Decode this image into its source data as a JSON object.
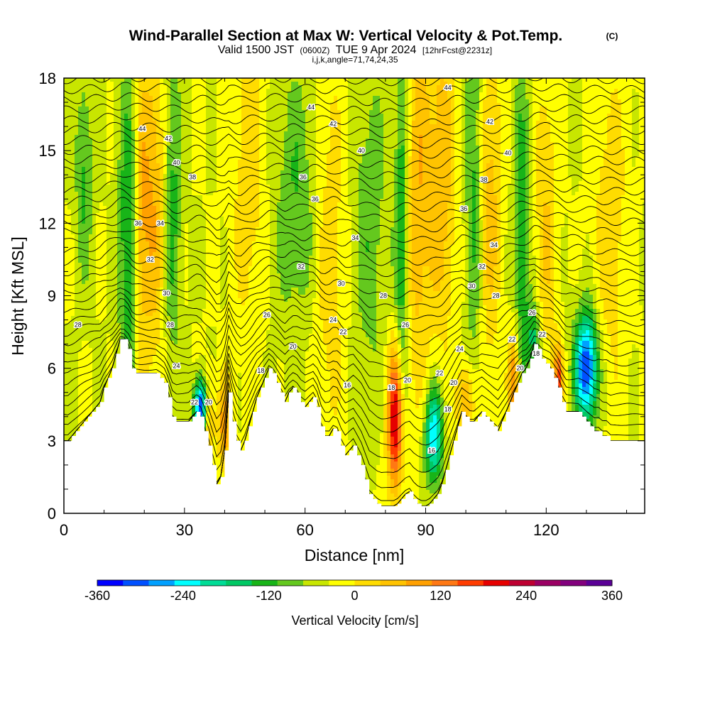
{
  "title": {
    "main": "Wind-Parallel Section at Max W: Vertical Velocity & Pot.Temp.",
    "copyright": "(C)",
    "valid_prefix": "Valid 1500 JST",
    "valid_utc": "(0600Z)",
    "valid_date": "TUE 9 Apr 2024",
    "forecast": "[12hrFcst@2231z]",
    "indices": "i,j,k,angle=71,74,24,35"
  },
  "chart_data": {
    "type": "heatmap",
    "xlabel": "Distance [nm]",
    "ylabel": "Height [Kft MSL]",
    "xlim": [
      0,
      144.5
    ],
    "ylim": [
      0,
      18
    ],
    "x_ticks": [
      0,
      30,
      60,
      90,
      120
    ],
    "y_ticks": [
      0,
      3,
      6,
      9,
      12,
      15,
      18
    ],
    "x_tick_labels": [
      "0",
      "30",
      "60",
      "90",
      "120"
    ],
    "y_tick_labels": [
      "0",
      "3",
      "6",
      "9",
      "12",
      "15",
      "18"
    ],
    "colorbar": {
      "title": "Vertical Velocity [cm/s]",
      "min": -360,
      "max": 360,
      "step": 40,
      "tick_values": [
        -360,
        -240,
        -120,
        0,
        120,
        240,
        360
      ],
      "tick_labels": [
        "-360",
        "-240",
        "-120",
        "0",
        "120",
        "240",
        "360"
      ],
      "colors": [
        "#0000ff",
        "#0050ff",
        "#00a0ff",
        "#00ffff",
        "#00dc96",
        "#00c864",
        "#18b418",
        "#64c81e",
        "#c8e600",
        "#ffff00",
        "#ffdc00",
        "#ffc300",
        "#ffa000",
        "#ff7814",
        "#ff3c00",
        "#e60000",
        "#be0032",
        "#9b0064",
        "#82007d",
        "#5a0096"
      ]
    },
    "terrain": [
      [
        0,
        3.0
      ],
      [
        1,
        3.0
      ],
      [
        2,
        3.2
      ],
      [
        3,
        3.4
      ],
      [
        4,
        3.6
      ],
      [
        5,
        3.8
      ],
      [
        6,
        4.0
      ],
      [
        7,
        4.2
      ],
      [
        8,
        4.4
      ],
      [
        9,
        4.6
      ],
      [
        10,
        5.2
      ],
      [
        11,
        5.6
      ],
      [
        12,
        6.0
      ],
      [
        13,
        6.6
      ],
      [
        14,
        7.2
      ],
      [
        15,
        7.2
      ],
      [
        16,
        6.8
      ],
      [
        17,
        6.0
      ],
      [
        18,
        5.8
      ],
      [
        19,
        5.8
      ],
      [
        20,
        5.8
      ],
      [
        21,
        5.8
      ],
      [
        22,
        5.8
      ],
      [
        23,
        5.8
      ],
      [
        24,
        5.6
      ],
      [
        25,
        5.4
      ],
      [
        26,
        4.8
      ],
      [
        27,
        4.0
      ],
      [
        28,
        3.8
      ],
      [
        29,
        3.8
      ],
      [
        30,
        3.8
      ],
      [
        31,
        3.8
      ],
      [
        32,
        4.0
      ],
      [
        33,
        4.2
      ],
      [
        34,
        4.0
      ],
      [
        35,
        3.4
      ],
      [
        36,
        2.8
      ],
      [
        37,
        2.0
      ],
      [
        38,
        1.2
      ],
      [
        39,
        1.5
      ],
      [
        40,
        2.6
      ],
      [
        41,
        5.0
      ],
      [
        42,
        3.8
      ],
      [
        43,
        3.0
      ],
      [
        44,
        2.6
      ],
      [
        45,
        3.0
      ],
      [
        46,
        3.6
      ],
      [
        47,
        4.2
      ],
      [
        48,
        4.8
      ],
      [
        49,
        5.2
      ],
      [
        50,
        5.6
      ],
      [
        51,
        6.0
      ],
      [
        52,
        5.8
      ],
      [
        53,
        5.4
      ],
      [
        54,
        5.0
      ],
      [
        55,
        4.6
      ],
      [
        56,
        5.0
      ],
      [
        57,
        5.2
      ],
      [
        58,
        5.0
      ],
      [
        59,
        4.6
      ],
      [
        60,
        4.4
      ],
      [
        61,
        4.6
      ],
      [
        62,
        4.8
      ],
      [
        63,
        4.4
      ],
      [
        64,
        3.6
      ],
      [
        65,
        3.2
      ],
      [
        66,
        3.2
      ],
      [
        67,
        3.5
      ],
      [
        68,
        3.4
      ],
      [
        69,
        2.8
      ],
      [
        70,
        2.4
      ],
      [
        71,
        2.6
      ],
      [
        72,
        2.8
      ],
      [
        73,
        2.4
      ],
      [
        74,
        2.0
      ],
      [
        75,
        1.4
      ],
      [
        76,
        0.8
      ],
      [
        77,
        0.6
      ],
      [
        78,
        0.4
      ],
      [
        79,
        0.3
      ],
      [
        80,
        0.3
      ],
      [
        81,
        0.3
      ],
      [
        82,
        0.3
      ],
      [
        83,
        0.4
      ],
      [
        84,
        0.6
      ],
      [
        85,
        0.8
      ],
      [
        86,
        0.9
      ],
      [
        87,
        0.6
      ],
      [
        88,
        0.4
      ],
      [
        89,
        0.3
      ],
      [
        90,
        0.3
      ],
      [
        91,
        0.4
      ],
      [
        92,
        0.6
      ],
      [
        93,
        0.8
      ],
      [
        94,
        1.2
      ],
      [
        95,
        1.8
      ],
      [
        96,
        2.4
      ],
      [
        97,
        3.0
      ],
      [
        98,
        3.6
      ],
      [
        99,
        4.2
      ],
      [
        100,
        4.0
      ],
      [
        101,
        3.8
      ],
      [
        102,
        3.8
      ],
      [
        103,
        4.0
      ],
      [
        104,
        4.2
      ],
      [
        105,
        4.0
      ],
      [
        106,
        3.8
      ],
      [
        107,
        3.6
      ],
      [
        108,
        3.4
      ],
      [
        109,
        3.8
      ],
      [
        110,
        4.2
      ],
      [
        111,
        4.6
      ],
      [
        112,
        5.0
      ],
      [
        113,
        5.4
      ],
      [
        114,
        5.8
      ],
      [
        115,
        6.0
      ],
      [
        116,
        6.4
      ],
      [
        117,
        7.0
      ],
      [
        118,
        6.8
      ],
      [
        119,
        6.4
      ],
      [
        120,
        6.2
      ],
      [
        121,
        6.0
      ],
      [
        122,
        5.6
      ],
      [
        123,
        5.2
      ],
      [
        124,
        4.6
      ],
      [
        125,
        4.2
      ],
      [
        126,
        4.2
      ],
      [
        127,
        4.2
      ],
      [
        128,
        4.2
      ],
      [
        129,
        4.0
      ],
      [
        130,
        3.8
      ],
      [
        131,
        3.6
      ],
      [
        132,
        3.4
      ],
      [
        133,
        3.4
      ],
      [
        134,
        3.2
      ],
      [
        135,
        3.2
      ],
      [
        136,
        3.0
      ],
      [
        137,
        3.0
      ],
      [
        138,
        3.0
      ],
      [
        139,
        3.0
      ],
      [
        140,
        3.0
      ],
      [
        141,
        3.0
      ],
      [
        142,
        3.0
      ],
      [
        143,
        3.0
      ],
      [
        144,
        3.0
      ],
      [
        144.5,
        3.0
      ]
    ],
    "velocity_features": [
      {
        "x": 5,
        "z": 14,
        "w": -90,
        "sx": 1.5,
        "sz": 3
      },
      {
        "x": 16,
        "z": 11.5,
        "w": -120,
        "sx": 1.8,
        "sz": 5
      },
      {
        "x": 19,
        "z": 12,
        "w": 90,
        "sx": 1.2,
        "sz": 4
      },
      {
        "x": 22,
        "z": 13,
        "w": 120,
        "sx": 2.2,
        "sz": 5
      },
      {
        "x": 27,
        "z": 13,
        "w": -100,
        "sx": 1.5,
        "sz": 5
      },
      {
        "x": 34,
        "z": 4.4,
        "w": -330,
        "sx": 1.2,
        "sz": 0.8
      },
      {
        "x": 36,
        "z": 4.0,
        "w": 120,
        "sx": 1.0,
        "sz": 1.2
      },
      {
        "x": 40,
        "z": 3.6,
        "w": 140,
        "sx": 1.2,
        "sz": 1.4
      },
      {
        "x": 46,
        "z": 14,
        "w": 70,
        "sx": 3,
        "sz": 5
      },
      {
        "x": 58,
        "z": 13,
        "w": -80,
        "sx": 4,
        "sz": 4
      },
      {
        "x": 66,
        "z": 11,
        "w": 70,
        "sx": 3,
        "sz": 6
      },
      {
        "x": 76,
        "z": 12,
        "w": -70,
        "sx": 3,
        "sz": 5
      },
      {
        "x": 82.5,
        "z": 3.8,
        "w": 300,
        "sx": 1.4,
        "sz": 2.2
      },
      {
        "x": 84,
        "z": 11,
        "w": -130,
        "sx": 1.2,
        "sz": 6
      },
      {
        "x": 88,
        "z": 13,
        "w": 110,
        "sx": 2.2,
        "sz": 6
      },
      {
        "x": 92,
        "z": 3.2,
        "w": -250,
        "sx": 1.6,
        "sz": 1.4
      },
      {
        "x": 94,
        "z": 14,
        "w": 110,
        "sx": 2.5,
        "sz": 5
      },
      {
        "x": 100,
        "z": 4.5,
        "w": 140,
        "sx": 1.5,
        "sz": 1.2
      },
      {
        "x": 102,
        "z": 14,
        "w": -100,
        "sx": 1.5,
        "sz": 6
      },
      {
        "x": 106,
        "z": 13,
        "w": 100,
        "sx": 2,
        "sz": 5
      },
      {
        "x": 112,
        "z": 5.5,
        "w": 180,
        "sx": 1.0,
        "sz": 1.4
      },
      {
        "x": 114,
        "z": 11,
        "w": -110,
        "sx": 1.4,
        "sz": 6
      },
      {
        "x": 117,
        "z": 7.2,
        "w": -140,
        "sx": 1.2,
        "sz": 1.0
      },
      {
        "x": 120,
        "z": 12,
        "w": 80,
        "sx": 2,
        "sz": 5
      },
      {
        "x": 123,
        "z": 5.6,
        "w": 200,
        "sx": 0.8,
        "sz": 1.0
      },
      {
        "x": 130,
        "z": 6.0,
        "w": -330,
        "sx": 2.0,
        "sz": 1.6
      },
      {
        "x": 136,
        "z": 12,
        "w": 70,
        "sx": 3,
        "sz": 5
      }
    ],
    "theta_contour_labels": [
      {
        "value": "44",
        "x": 19.5,
        "z": 15.9
      },
      {
        "value": "42",
        "x": 26.0,
        "z": 15.5
      },
      {
        "value": "40",
        "x": 28.0,
        "z": 14.5
      },
      {
        "value": "38",
        "x": 32.0,
        "z": 13.9
      },
      {
        "value": "36",
        "x": 18.5,
        "z": 12.0
      },
      {
        "value": "34",
        "x": 24.0,
        "z": 12.0
      },
      {
        "value": "32",
        "x": 21.5,
        "z": 10.5
      },
      {
        "value": "30",
        "x": 25.5,
        "z": 9.1
      },
      {
        "value": "28",
        "x": 3.5,
        "z": 7.8
      },
      {
        "value": "28",
        "x": 26.5,
        "z": 7.8
      },
      {
        "value": "26",
        "x": 50.5,
        "z": 8.2
      },
      {
        "value": "24",
        "x": 28.0,
        "z": 6.1
      },
      {
        "value": "22",
        "x": 32.5,
        "z": 4.6
      },
      {
        "value": "20",
        "x": 36.0,
        "z": 4.6
      },
      {
        "value": "18",
        "x": 49.0,
        "z": 5.9
      },
      {
        "value": "20",
        "x": 57.0,
        "z": 6.9
      },
      {
        "value": "24",
        "x": 67.0,
        "z": 8.0
      },
      {
        "value": "22",
        "x": 69.5,
        "z": 7.5
      },
      {
        "value": "16",
        "x": 70.5,
        "z": 5.3
      },
      {
        "value": "44",
        "x": 61.5,
        "z": 16.8
      },
      {
        "value": "42",
        "x": 67.0,
        "z": 16.1
      },
      {
        "value": "40",
        "x": 74.0,
        "z": 15.0
      },
      {
        "value": "36",
        "x": 59.5,
        "z": 13.9
      },
      {
        "value": "36",
        "x": 62.5,
        "z": 13.0
      },
      {
        "value": "34",
        "x": 72.5,
        "z": 11.4
      },
      {
        "value": "32",
        "x": 59.0,
        "z": 10.2
      },
      {
        "value": "30",
        "x": 69.0,
        "z": 9.5
      },
      {
        "value": "28",
        "x": 79.5,
        "z": 9.0
      },
      {
        "value": "26",
        "x": 85.0,
        "z": 7.8
      },
      {
        "value": "18",
        "x": 81.5,
        "z": 5.2
      },
      {
        "value": "20",
        "x": 85.5,
        "z": 5.5
      },
      {
        "value": "44",
        "x": 95.5,
        "z": 17.6
      },
      {
        "value": "42",
        "x": 106.0,
        "z": 16.2
      },
      {
        "value": "40",
        "x": 110.5,
        "z": 14.9
      },
      {
        "value": "38",
        "x": 104.5,
        "z": 13.8
      },
      {
        "value": "36",
        "x": 99.5,
        "z": 12.6
      },
      {
        "value": "34",
        "x": 107.0,
        "z": 11.1
      },
      {
        "value": "32",
        "x": 104.0,
        "z": 10.2
      },
      {
        "value": "30",
        "x": 101.5,
        "z": 9.4
      },
      {
        "value": "28",
        "x": 107.5,
        "z": 9.0
      },
      {
        "value": "24",
        "x": 98.5,
        "z": 6.8
      },
      {
        "value": "22",
        "x": 93.5,
        "z": 5.8
      },
      {
        "value": "20",
        "x": 97.0,
        "z": 5.4
      },
      {
        "value": "18",
        "x": 95.5,
        "z": 4.3
      },
      {
        "value": "16",
        "x": 91.5,
        "z": 2.6
      },
      {
        "value": "22",
        "x": 111.5,
        "z": 7.2
      },
      {
        "value": "20",
        "x": 113.5,
        "z": 6.0
      },
      {
        "value": "26",
        "x": 116.5,
        "z": 8.3
      },
      {
        "value": "22",
        "x": 119.0,
        "z": 7.4
      },
      {
        "value": "18",
        "x": 117.5,
        "z": 6.6
      }
    ]
  }
}
